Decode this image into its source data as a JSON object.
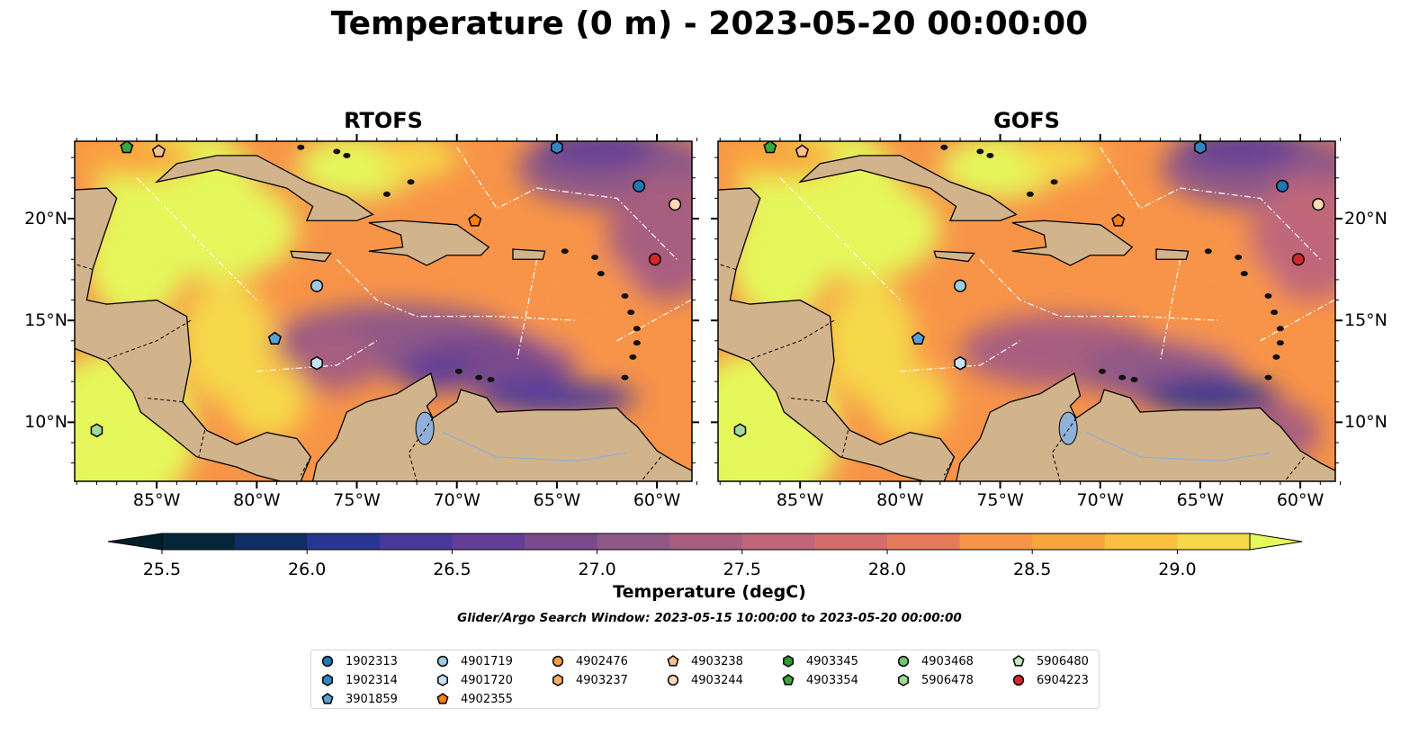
{
  "title": "Temperature (0 m) - 2023-05-20 00:00:00",
  "panels": [
    {
      "id": "rtofs",
      "title": "RTOFS"
    },
    {
      "id": "gofs",
      "title": "GOFS"
    }
  ],
  "map_extent": {
    "lon": [
      -89.1,
      -58.25
    ],
    "lat": [
      7.1,
      23.8
    ]
  },
  "x_ticks": [
    {
      "lon": -85,
      "label": "85°W"
    },
    {
      "lon": -80,
      "label": "80°W"
    },
    {
      "lon": -75,
      "label": "75°W"
    },
    {
      "lon": -70,
      "label": "70°W"
    },
    {
      "lon": -65,
      "label": "65°W"
    },
    {
      "lon": -60,
      "label": "60°W"
    }
  ],
  "y_ticks": [
    {
      "lat": 10,
      "label": "10°N"
    },
    {
      "lat": 15,
      "label": "15°N"
    },
    {
      "lat": 20,
      "label": "20°N"
    }
  ],
  "colorbar": {
    "label": "Temperature (degC)",
    "min": 25.5,
    "max": 29.25,
    "step": 0.25,
    "under_color": "#02202b",
    "over_color": "#e5f75a",
    "colors": [
      "#04263a",
      "#0f2f64",
      "#273690",
      "#483a9b",
      "#623f95",
      "#7a4a8c",
      "#8f5887",
      "#a85e7f",
      "#c0677a",
      "#d46d6d",
      "#e87a5c",
      "#f89448",
      "#f9a53d",
      "#f9bf3f",
      "#f6d848"
    ],
    "ticks": [
      "25.5",
      "26.0",
      "26.5",
      "27.0",
      "27.5",
      "28.0",
      "28.5",
      "29.0"
    ]
  },
  "search_window": "Glider/Argo Search Window: 2023-05-15 10:00:00 to 2023-05-20 00:00:00",
  "land_color": "#d2b48c",
  "floats": [
    {
      "id": "1902313",
      "shape": "circle",
      "color": "#1f77b4",
      "lon": -60.9,
      "lat": 21.6
    },
    {
      "id": "1902314",
      "shape": "hexagon",
      "color": "#3585c4",
      "lon": -65.0,
      "lat": 23.5
    },
    {
      "id": "3901859",
      "shape": "pentagon",
      "color": "#5aa0d8",
      "lon": -79.1,
      "lat": 14.1
    },
    {
      "id": "4901719",
      "shape": "circle",
      "color": "#9ecae1",
      "lon": -77.0,
      "lat": 16.7
    },
    {
      "id": "4901720",
      "shape": "hexagon",
      "color": "#c6e3f7",
      "lon": -77.0,
      "lat": 12.9
    },
    {
      "id": "4902355",
      "shape": "pentagon",
      "color": "#fd7f0e",
      "lon": -69.1,
      "lat": 19.9
    },
    {
      "id": "4902476",
      "shape": "circle",
      "color": "#fd9a44",
      "lon": null,
      "lat": null
    },
    {
      "id": "4903237",
      "shape": "hexagon",
      "color": "#fdae6b",
      "lon": null,
      "lat": null
    },
    {
      "id": "4903238",
      "shape": "pentagon",
      "color": "#fdc08f",
      "lon": -84.9,
      "lat": 23.3
    },
    {
      "id": "4903244",
      "shape": "circle",
      "color": "#fdd9b5",
      "lon": -59.1,
      "lat": 20.7
    },
    {
      "id": "4903345",
      "shape": "hexagon",
      "color": "#2a9a2a",
      "lon": null,
      "lat": null
    },
    {
      "id": "4903354",
      "shape": "pentagon",
      "color": "#38a838",
      "lon": -86.5,
      "lat": 23.5
    },
    {
      "id": "4903468",
      "shape": "circle",
      "color": "#74c476",
      "lon": null,
      "lat": null
    },
    {
      "id": "5906478",
      "shape": "hexagon",
      "color": "#a1d99b",
      "lon": -88.0,
      "lat": 9.6
    },
    {
      "id": "5906480",
      "shape": "pentagon",
      "color": "#c7e9c0",
      "lon": null,
      "lat": null
    },
    {
      "id": "6904223",
      "shape": "circle",
      "color": "#d62728",
      "lon": -60.1,
      "lat": 18.0
    }
  ]
}
